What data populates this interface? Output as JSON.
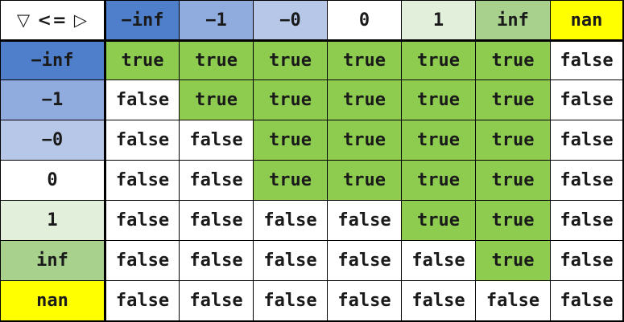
{
  "corner_label": "▽ <= ▷",
  "columns": [
    {
      "label": "−inf",
      "color": "#4f7fca"
    },
    {
      "label": "−1",
      "color": "#90abdd"
    },
    {
      "label": "−0",
      "color": "#b6c7e7"
    },
    {
      "label": "0",
      "color": "#ffffff"
    },
    {
      "label": "1",
      "color": "#e2efdb"
    },
    {
      "label": "inf",
      "color": "#a8d18e"
    },
    {
      "label": "nan",
      "color": "#ffff00"
    }
  ],
  "rows": [
    {
      "label": "−inf",
      "color": "#4f7fca"
    },
    {
      "label": "−1",
      "color": "#90abdd"
    },
    {
      "label": "−0",
      "color": "#b6c7e7"
    },
    {
      "label": "0",
      "color": "#ffffff"
    },
    {
      "label": "1",
      "color": "#e2efdb"
    },
    {
      "label": "inf",
      "color": "#a8d18e"
    },
    {
      "label": "nan",
      "color": "#ffff00"
    }
  ],
  "values": [
    [
      "true",
      "true",
      "true",
      "true",
      "true",
      "true",
      "false"
    ],
    [
      "false",
      "true",
      "true",
      "true",
      "true",
      "true",
      "false"
    ],
    [
      "false",
      "false",
      "true",
      "true",
      "true",
      "true",
      "false"
    ],
    [
      "false",
      "false",
      "true",
      "true",
      "true",
      "true",
      "false"
    ],
    [
      "false",
      "false",
      "false",
      "false",
      "true",
      "true",
      "false"
    ],
    [
      "false",
      "false",
      "false",
      "false",
      "false",
      "true",
      "false"
    ],
    [
      "false",
      "false",
      "false",
      "false",
      "false",
      "false",
      "false"
    ]
  ],
  "colors": {
    "true": "#8dcc4e",
    "false": "#ffffff",
    "grid_line": "#000000"
  }
}
